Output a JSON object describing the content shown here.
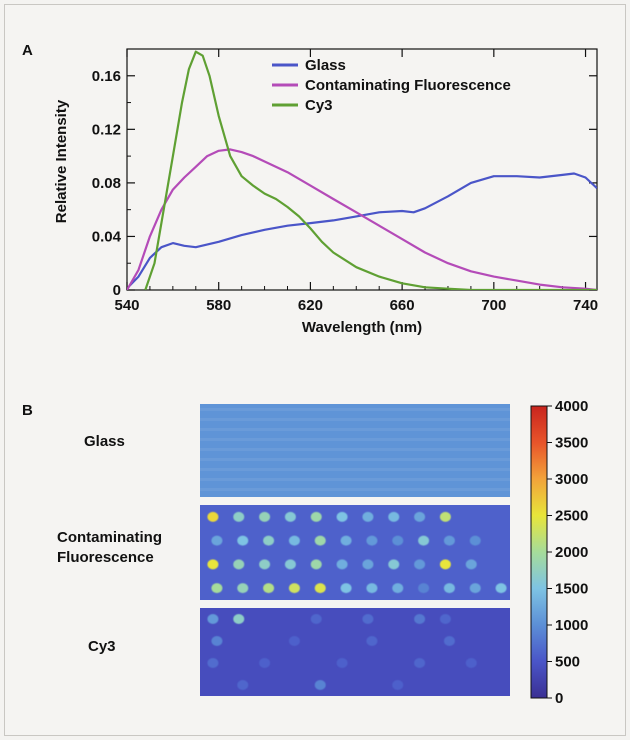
{
  "panel_a": {
    "label": "A"
  },
  "panel_b": {
    "label": "B",
    "rows": [
      {
        "name": "glass",
        "label_lines": [
          "Glass"
        ]
      },
      {
        "name": "contaminating",
        "label_lines": [
          "Contaminating",
          "Fluorescence"
        ]
      },
      {
        "name": "cy3",
        "label_lines": [
          "Cy3"
        ]
      }
    ]
  },
  "chart_data": [
    {
      "type": "line",
      "xlabel": "Wavelength (nm)",
      "ylabel": "Relative Intensity",
      "xlim": [
        540,
        745
      ],
      "ylim": [
        0,
        0.18
      ],
      "xticks": [
        540,
        580,
        620,
        660,
        700,
        740
      ],
      "yticks": [
        0,
        0.04,
        0.08,
        0.12,
        0.16
      ],
      "ytick_labels": [
        "0",
        "0.04",
        "0.08",
        "0.12",
        "0.16"
      ],
      "legend_position": "top-right",
      "grid": false,
      "series": [
        {
          "name": "Glass",
          "color": "#4a55c8",
          "points": [
            [
              541,
              0.003
            ],
            [
              545,
              0.01
            ],
            [
              550,
              0.024
            ],
            [
              555,
              0.032
            ],
            [
              560,
              0.035
            ],
            [
              565,
              0.033
            ],
            [
              570,
              0.032
            ],
            [
              580,
              0.036
            ],
            [
              590,
              0.041
            ],
            [
              600,
              0.045
            ],
            [
              610,
              0.048
            ],
            [
              620,
              0.05
            ],
            [
              630,
              0.052
            ],
            [
              640,
              0.055
            ],
            [
              650,
              0.058
            ],
            [
              660,
              0.059
            ],
            [
              665,
              0.058
            ],
            [
              670,
              0.061
            ],
            [
              680,
              0.07
            ],
            [
              690,
              0.08
            ],
            [
              700,
              0.085
            ],
            [
              710,
              0.085
            ],
            [
              720,
              0.084
            ],
            [
              730,
              0.086
            ],
            [
              735,
              0.087
            ],
            [
              740,
              0.084
            ],
            [
              745,
              0.076
            ]
          ]
        },
        {
          "name": "Contaminating Fluorescence",
          "color": "#b44bb8",
          "points": [
            [
              540,
              0.0
            ],
            [
              545,
              0.015
            ],
            [
              550,
              0.04
            ],
            [
              555,
              0.06
            ],
            [
              560,
              0.075
            ],
            [
              565,
              0.084
            ],
            [
              570,
              0.092
            ],
            [
              575,
              0.1
            ],
            [
              580,
              0.104
            ],
            [
              585,
              0.105
            ],
            [
              590,
              0.103
            ],
            [
              595,
              0.1
            ],
            [
              600,
              0.096
            ],
            [
              610,
              0.088
            ],
            [
              620,
              0.078
            ],
            [
              630,
              0.068
            ],
            [
              640,
              0.058
            ],
            [
              650,
              0.048
            ],
            [
              660,
              0.038
            ],
            [
              670,
              0.028
            ],
            [
              680,
              0.02
            ],
            [
              690,
              0.014
            ],
            [
              700,
              0.01
            ],
            [
              710,
              0.007
            ],
            [
              720,
              0.004
            ],
            [
              730,
              0.002
            ],
            [
              740,
              0.001
            ],
            [
              745,
              0.0
            ]
          ]
        },
        {
          "name": "Cy3",
          "color": "#5fa033",
          "points": [
            [
              548,
              0.0
            ],
            [
              552,
              0.02
            ],
            [
              556,
              0.06
            ],
            [
              560,
              0.1
            ],
            [
              564,
              0.14
            ],
            [
              567,
              0.165
            ],
            [
              570,
              0.178
            ],
            [
              573,
              0.175
            ],
            [
              576,
              0.16
            ],
            [
              580,
              0.13
            ],
            [
              585,
              0.1
            ],
            [
              590,
              0.085
            ],
            [
              595,
              0.078
            ],
            [
              600,
              0.072
            ],
            [
              605,
              0.068
            ],
            [
              610,
              0.062
            ],
            [
              615,
              0.055
            ],
            [
              620,
              0.046
            ],
            [
              625,
              0.036
            ],
            [
              630,
              0.028
            ],
            [
              640,
              0.017
            ],
            [
              650,
              0.01
            ],
            [
              660,
              0.005
            ],
            [
              670,
              0.002
            ],
            [
              680,
              0.001
            ],
            [
              690,
              0.0
            ],
            [
              745,
              0.0
            ]
          ]
        }
      ]
    },
    {
      "type": "heatmap",
      "colorbar": {
        "min": 0,
        "max": 4000,
        "ticks": [
          0,
          500,
          1000,
          1500,
          2000,
          2500,
          3000,
          3500,
          4000
        ],
        "colors": [
          "#3a2f93",
          "#4a55c8",
          "#5c8fd6",
          "#7ec3e3",
          "#a6dc9a",
          "#e8e53a",
          "#f2a33a",
          "#e8542a",
          "#c8241e"
        ]
      },
      "panels": [
        {
          "name": "Glass",
          "background_level": 1050,
          "spots": []
        },
        {
          "name": "Contaminating Fluorescence",
          "background_level": 600,
          "spots": [
            {
              "row": 0,
              "col": 0,
              "level": 2600
            },
            {
              "row": 0,
              "col": 1,
              "level": 1700
            },
            {
              "row": 0,
              "col": 2,
              "level": 1800
            },
            {
              "row": 0,
              "col": 3,
              "level": 1600
            },
            {
              "row": 0,
              "col": 4,
              "level": 1900
            },
            {
              "row": 0,
              "col": 5,
              "level": 1500
            },
            {
              "row": 0,
              "col": 6,
              "level": 1300
            },
            {
              "row": 0,
              "col": 7,
              "level": 1400
            },
            {
              "row": 0,
              "col": 8,
              "level": 1200
            },
            {
              "row": 0,
              "col": 9,
              "level": 2200
            },
            {
              "row": 1,
              "col": 0,
              "level": 1200
            },
            {
              "row": 1,
              "col": 1,
              "level": 1500
            },
            {
              "row": 1,
              "col": 2,
              "level": 1700
            },
            {
              "row": 1,
              "col": 3,
              "level": 1400
            },
            {
              "row": 1,
              "col": 4,
              "level": 1900
            },
            {
              "row": 1,
              "col": 5,
              "level": 1300
            },
            {
              "row": 1,
              "col": 6,
              "level": 1100
            },
            {
              "row": 1,
              "col": 7,
              "level": 1000
            },
            {
              "row": 1,
              "col": 8,
              "level": 1600
            },
            {
              "row": 1,
              "col": 9,
              "level": 1100
            },
            {
              "row": 1,
              "col": 10,
              "level": 1000
            },
            {
              "row": 2,
              "col": 0,
              "level": 2500
            },
            {
              "row": 2,
              "col": 1,
              "level": 1800
            },
            {
              "row": 2,
              "col": 2,
              "level": 1700
            },
            {
              "row": 2,
              "col": 3,
              "level": 1600
            },
            {
              "row": 2,
              "col": 4,
              "level": 1900
            },
            {
              "row": 2,
              "col": 5,
              "level": 1300
            },
            {
              "row": 2,
              "col": 6,
              "level": 1200
            },
            {
              "row": 2,
              "col": 7,
              "level": 1600
            },
            {
              "row": 2,
              "col": 8,
              "level": 1100
            },
            {
              "row": 2,
              "col": 9,
              "level": 2500
            },
            {
              "row": 2,
              "col": 10,
              "level": 1200
            },
            {
              "row": 3,
              "col": 0,
              "level": 2000
            },
            {
              "row": 3,
              "col": 1,
              "level": 1800
            },
            {
              "row": 3,
              "col": 2,
              "level": 2100
            },
            {
              "row": 3,
              "col": 3,
              "level": 2300
            },
            {
              "row": 3,
              "col": 4,
              "level": 2400
            },
            {
              "row": 3,
              "col": 5,
              "level": 1500
            },
            {
              "row": 3,
              "col": 6,
              "level": 1400
            },
            {
              "row": 3,
              "col": 7,
              "level": 1300
            },
            {
              "row": 3,
              "col": 8,
              "level": 900
            },
            {
              "row": 3,
              "col": 9,
              "level": 1400
            },
            {
              "row": 3,
              "col": 10,
              "level": 1200
            },
            {
              "row": 3,
              "col": 11,
              "level": 1500
            }
          ]
        },
        {
          "name": "Cy3",
          "background_level": 400,
          "spots": [
            {
              "row": 0,
              "col": 0,
              "level": 1100
            },
            {
              "row": 0,
              "col": 1,
              "level": 1700
            },
            {
              "row": 0,
              "col": 4,
              "level": 650
            },
            {
              "row": 0,
              "col": 6,
              "level": 700
            },
            {
              "row": 0,
              "col": 8,
              "level": 800
            },
            {
              "row": 0,
              "col": 9,
              "level": 650
            },
            {
              "row": 1,
              "col": 0,
              "level": 900
            },
            {
              "row": 1,
              "col": 3,
              "level": 600
            },
            {
              "row": 1,
              "col": 6,
              "level": 650
            },
            {
              "row": 1,
              "col": 9,
              "level": 700
            },
            {
              "row": 2,
              "col": 0,
              "level": 700
            },
            {
              "row": 2,
              "col": 2,
              "level": 600
            },
            {
              "row": 2,
              "col": 5,
              "level": 600
            },
            {
              "row": 2,
              "col": 8,
              "level": 650
            },
            {
              "row": 2,
              "col": 10,
              "level": 600
            },
            {
              "row": 3,
              "col": 1,
              "level": 650
            },
            {
              "row": 3,
              "col": 4,
              "level": 900
            },
            {
              "row": 3,
              "col": 7,
              "level": 600
            }
          ]
        }
      ]
    }
  ]
}
